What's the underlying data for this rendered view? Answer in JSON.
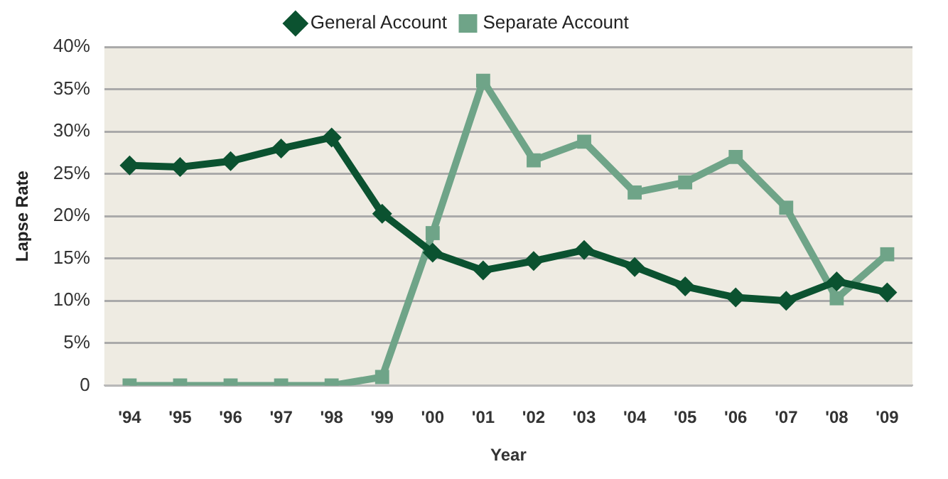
{
  "chart_data": {
    "type": "line",
    "xlabel": "Year",
    "ylabel": "Lapse Rate",
    "categories": [
      "'94",
      "'95",
      "'96",
      "'97",
      "'98",
      "'99",
      "'00",
      "'01",
      "'02",
      "'03",
      "'04",
      "'05",
      "'06",
      "'07",
      "'08",
      "'09"
    ],
    "series": [
      {
        "name": "General Account",
        "color": "#0b5230",
        "marker": "diamond",
        "values": [
          26,
          25.8,
          26.5,
          28,
          29.3,
          20.3,
          15.7,
          13.6,
          14.7,
          16,
          14,
          11.7,
          10.4,
          10,
          12.3,
          11
        ]
      },
      {
        "name": "Separate Account",
        "color": "#6fa488",
        "marker": "square",
        "values": [
          0,
          0,
          0,
          0,
          0,
          1,
          18,
          36,
          26.6,
          28.8,
          22.8,
          24,
          27,
          21,
          10.3,
          15.5
        ]
      }
    ],
    "ylim": [
      0,
      40
    ],
    "yticks": [
      {
        "value": 0,
        "label": "0"
      },
      {
        "value": 5,
        "label": "5%"
      },
      {
        "value": 10,
        "label": "10%"
      },
      {
        "value": 15,
        "label": "15%"
      },
      {
        "value": 20,
        "label": "20%"
      },
      {
        "value": 25,
        "label": "25%"
      },
      {
        "value": 30,
        "label": "30%"
      },
      {
        "value": 35,
        "label": "35%"
      },
      {
        "value": 40,
        "label": "40%"
      }
    ],
    "grid": "y",
    "legend": "top"
  }
}
